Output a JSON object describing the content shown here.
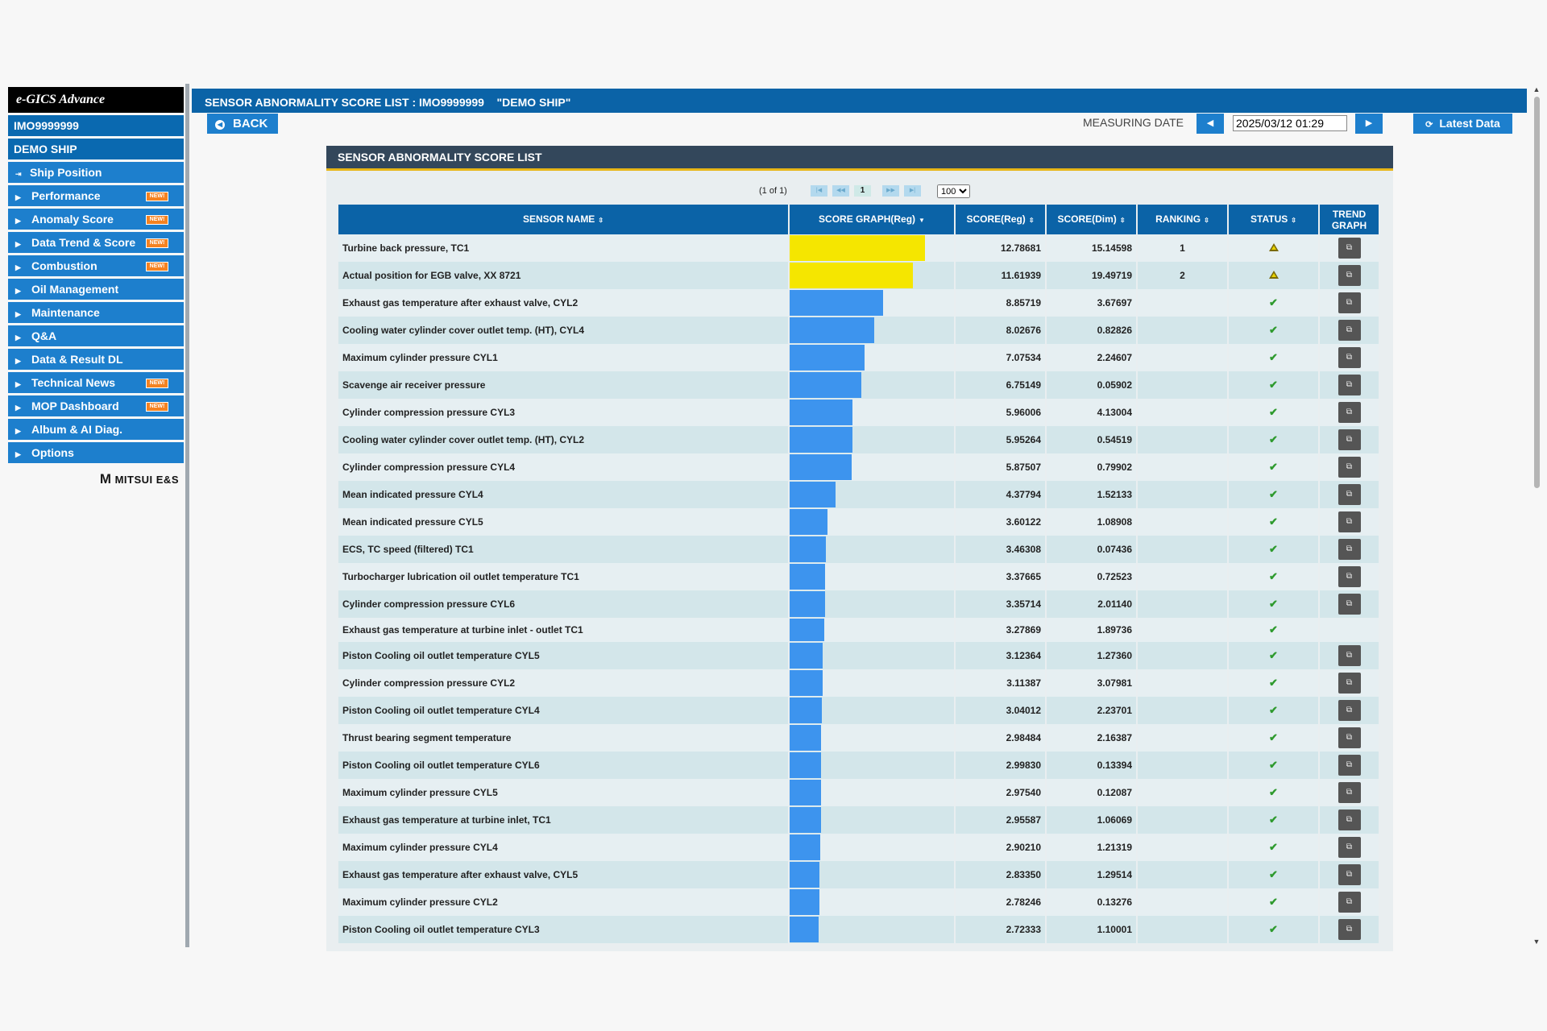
{
  "sidebar": {
    "logo": "e-GICS Advance",
    "imo": "IMO9999999",
    "ship": "DEMO SHIP",
    "items": [
      {
        "label": "Ship Position",
        "icon": "pin-icon",
        "new": false
      },
      {
        "label": "Performance",
        "icon": "caret-right-icon",
        "new": true
      },
      {
        "label": "Anomaly Score",
        "icon": "caret-right-icon",
        "new": true
      },
      {
        "label": "Data Trend & Score",
        "icon": "caret-right-icon",
        "new": true
      },
      {
        "label": "Combustion",
        "icon": "caret-right-icon",
        "new": true
      },
      {
        "label": "Oil Management",
        "icon": "caret-right-icon",
        "new": false
      },
      {
        "label": "Maintenance",
        "icon": "caret-right-icon",
        "new": false
      },
      {
        "label": "Q&A",
        "icon": "caret-right-icon",
        "new": false
      },
      {
        "label": "Data & Result DL",
        "icon": "caret-right-icon",
        "new": false
      },
      {
        "label": "Technical News",
        "icon": "caret-right-icon",
        "new": true
      },
      {
        "label": "MOP Dashboard",
        "icon": "caret-right-icon",
        "new": true
      },
      {
        "label": "Album & AI Diag.",
        "icon": "caret-right-icon",
        "new": false
      },
      {
        "label": "Options",
        "icon": "caret-right-icon",
        "new": false
      }
    ],
    "new_badge": "NEW!",
    "brand": "MITSUI E&S"
  },
  "header": {
    "title": "SENSOR ABNORMALITY SCORE LIST : IMO9999999    \"DEMO SHIP\"",
    "back_label": "BACK",
    "measuring_label": "MEASURING DATE",
    "measuring_date": "2025/03/12 01:29",
    "latest_label": "Latest Data"
  },
  "panel": {
    "title": "SENSOR ABNORMALITY SCORE LIST",
    "pager": {
      "info": "(1 of 1)",
      "current": "1",
      "per_page": "100"
    },
    "columns": {
      "name": "SENSOR NAME",
      "graph": "SCORE GRAPH(Reg)",
      "reg": "SCORE(Reg)",
      "dim": "SCORE(Dim)",
      "rank": "RANKING",
      "status": "STATUS",
      "trend1": "TREND",
      "trend2": "GRAPH"
    },
    "colors": {
      "warn_bar": "#f5e600",
      "normal_bar": "#3d94ee"
    },
    "rows": [
      {
        "name": "Turbine back pressure, TC1",
        "reg": "12.78681",
        "dim": "15.14598",
        "rank": "1",
        "status": "warning",
        "trend": true
      },
      {
        "name": "Actual position for EGB valve, XX 8721",
        "reg": "11.61939",
        "dim": "19.49719",
        "rank": "2",
        "status": "warning",
        "trend": true
      },
      {
        "name": "Exhaust gas temperature after exhaust valve, CYL2",
        "reg": "8.85719",
        "dim": "3.67697",
        "rank": "",
        "status": "ok",
        "trend": true
      },
      {
        "name": "Cooling water cylinder cover outlet temp. (HT), CYL4",
        "reg": "8.02676",
        "dim": "0.82826",
        "rank": "",
        "status": "ok",
        "trend": true
      },
      {
        "name": "Maximum cylinder pressure CYL1",
        "reg": "7.07534",
        "dim": "2.24607",
        "rank": "",
        "status": "ok",
        "trend": true
      },
      {
        "name": "Scavenge air receiver pressure",
        "reg": "6.75149",
        "dim": "0.05902",
        "rank": "",
        "status": "ok",
        "trend": true
      },
      {
        "name": "Cylinder compression pressure CYL3",
        "reg": "5.96006",
        "dim": "4.13004",
        "rank": "",
        "status": "ok",
        "trend": true
      },
      {
        "name": "Cooling water cylinder cover outlet temp. (HT), CYL2",
        "reg": "5.95264",
        "dim": "0.54519",
        "rank": "",
        "status": "ok",
        "trend": true
      },
      {
        "name": "Cylinder compression pressure CYL4",
        "reg": "5.87507",
        "dim": "0.79902",
        "rank": "",
        "status": "ok",
        "trend": true
      },
      {
        "name": "Mean indicated pressure CYL4",
        "reg": "4.37794",
        "dim": "1.52133",
        "rank": "",
        "status": "ok",
        "trend": true
      },
      {
        "name": "Mean indicated pressure CYL5",
        "reg": "3.60122",
        "dim": "1.08908",
        "rank": "",
        "status": "ok",
        "trend": true
      },
      {
        "name": "ECS, TC speed (filtered) TC1",
        "reg": "3.46308",
        "dim": "0.07436",
        "rank": "",
        "status": "ok",
        "trend": true
      },
      {
        "name": "Turbocharger lubrication oil outlet temperature TC1",
        "reg": "3.37665",
        "dim": "0.72523",
        "rank": "",
        "status": "ok",
        "trend": true
      },
      {
        "name": "Cylinder compression pressure CYL6",
        "reg": "3.35714",
        "dim": "2.01140",
        "rank": "",
        "status": "ok",
        "trend": true
      },
      {
        "name": "Exhaust gas temperature at turbine inlet - outlet TC1",
        "reg": "3.27869",
        "dim": "1.89736",
        "rank": "",
        "status": "ok",
        "trend": false
      },
      {
        "name": "Piston Cooling oil outlet temperature CYL5",
        "reg": "3.12364",
        "dim": "1.27360",
        "rank": "",
        "status": "ok",
        "trend": true
      },
      {
        "name": "Cylinder compression pressure CYL2",
        "reg": "3.11387",
        "dim": "3.07981",
        "rank": "",
        "status": "ok",
        "trend": true
      },
      {
        "name": "Piston Cooling oil outlet temperature CYL4",
        "reg": "3.04012",
        "dim": "2.23701",
        "rank": "",
        "status": "ok",
        "trend": true
      },
      {
        "name": "Thrust bearing segment temperature",
        "reg": "2.98484",
        "dim": "2.16387",
        "rank": "",
        "status": "ok",
        "trend": true
      },
      {
        "name": "Piston Cooling oil outlet temperature CYL6",
        "reg": "2.99830",
        "dim": "0.13394",
        "rank": "",
        "status": "ok",
        "trend": true
      },
      {
        "name": "Maximum cylinder pressure CYL5",
        "reg": "2.97540",
        "dim": "0.12087",
        "rank": "",
        "status": "ok",
        "trend": true
      },
      {
        "name": "Exhaust gas temperature at turbine inlet, TC1",
        "reg": "2.95587",
        "dim": "1.06069",
        "rank": "",
        "status": "ok",
        "trend": true
      },
      {
        "name": "Maximum cylinder pressure CYL4",
        "reg": "2.90210",
        "dim": "1.21319",
        "rank": "",
        "status": "ok",
        "trend": true
      },
      {
        "name": "Exhaust gas temperature after exhaust valve, CYL5",
        "reg": "2.83350",
        "dim": "1.29514",
        "rank": "",
        "status": "ok",
        "trend": true
      },
      {
        "name": "Maximum cylinder pressure CYL2",
        "reg": "2.78246",
        "dim": "0.13276",
        "rank": "",
        "status": "ok",
        "trend": true
      },
      {
        "name": "Piston Cooling oil outlet temperature CYL3",
        "reg": "2.72333",
        "dim": "1.10001",
        "rank": "",
        "status": "ok",
        "trend": true
      }
    ]
  }
}
